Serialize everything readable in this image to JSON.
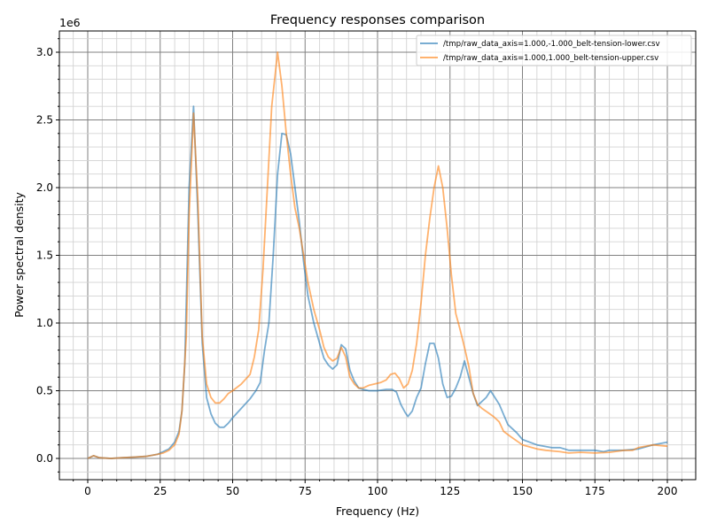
{
  "chart_data": {
    "type": "line",
    "title": "Frequency responses comparison",
    "xlabel": "Frequency (Hz)",
    "ylabel": "Power spectral density",
    "y_scale_label": "1e6",
    "xlim": [
      -10,
      210
    ],
    "ylim": [
      -0.15,
      3.15
    ],
    "x_ticks": [
      0,
      25,
      50,
      75,
      100,
      125,
      150,
      175,
      200
    ],
    "x_tick_labels": [
      "0",
      "25",
      "50",
      "75",
      "100",
      "125",
      "150",
      "175",
      "200"
    ],
    "y_ticks": [
      0,
      0.5,
      1,
      1.5,
      2,
      2.5,
      3
    ],
    "y_tick_labels": [
      "0.0",
      "0.5",
      "1.0",
      "1.5",
      "2.0",
      "2.5",
      "3.0"
    ],
    "grid": "major and minor",
    "legend_position": "top-right",
    "series": [
      {
        "name": "/tmp/raw_data_axis=1.000,-1.000_belt-tension-lower.csv",
        "color": "#1f77b4",
        "points": [
          [
            0,
            0
          ],
          [
            2,
            0.02
          ],
          [
            4,
            0.005
          ],
          [
            8,
            0
          ],
          [
            12,
            0.005
          ],
          [
            16,
            0.01
          ],
          [
            20,
            0.015
          ],
          [
            24,
            0.03
          ],
          [
            26,
            0.05
          ],
          [
            28,
            0.07
          ],
          [
            30,
            0.12
          ],
          [
            31.5,
            0.2
          ],
          [
            32.5,
            0.35
          ],
          [
            33.5,
            0.7
          ],
          [
            35,
            2.0
          ],
          [
            36.5,
            2.6
          ],
          [
            38,
            1.8
          ],
          [
            39.5,
            0.85
          ],
          [
            41,
            0.45
          ],
          [
            42.5,
            0.33
          ],
          [
            44,
            0.26
          ],
          [
            45.5,
            0.23
          ],
          [
            47,
            0.23
          ],
          [
            48.5,
            0.26
          ],
          [
            50,
            0.3
          ],
          [
            53,
            0.37
          ],
          [
            56,
            0.44
          ],
          [
            58,
            0.5
          ],
          [
            59.5,
            0.56
          ],
          [
            61,
            0.8
          ],
          [
            62.5,
            1.0
          ],
          [
            64,
            1.5
          ],
          [
            65.5,
            2.1
          ],
          [
            67,
            2.4
          ],
          [
            68.5,
            2.39
          ],
          [
            70,
            2.25
          ],
          [
            71.5,
            2.0
          ],
          [
            73,
            1.75
          ],
          [
            74.5,
            1.45
          ],
          [
            76,
            1.2
          ],
          [
            78,
            1.0
          ],
          [
            80,
            0.85
          ],
          [
            81.5,
            0.74
          ],
          [
            83,
            0.69
          ],
          [
            84.5,
            0.66
          ],
          [
            86,
            0.69
          ],
          [
            87.5,
            0.84
          ],
          [
            89,
            0.81
          ],
          [
            90.5,
            0.65
          ],
          [
            92,
            0.57
          ],
          [
            93.5,
            0.52
          ],
          [
            95,
            0.51
          ],
          [
            97,
            0.5
          ],
          [
            100,
            0.5
          ],
          [
            103,
            0.51
          ],
          [
            105,
            0.51
          ],
          [
            106.5,
            0.49
          ],
          [
            108,
            0.4
          ],
          [
            109.5,
            0.34
          ],
          [
            110.5,
            0.31
          ],
          [
            112,
            0.35
          ],
          [
            113.5,
            0.45
          ],
          [
            115,
            0.52
          ],
          [
            116.5,
            0.7
          ],
          [
            118,
            0.85
          ],
          [
            119.5,
            0.85
          ],
          [
            121,
            0.74
          ],
          [
            122.5,
            0.55
          ],
          [
            124,
            0.45
          ],
          [
            125.5,
            0.46
          ],
          [
            127,
            0.52
          ],
          [
            128.5,
            0.6
          ],
          [
            130,
            0.72
          ],
          [
            131.5,
            0.6
          ],
          [
            133,
            0.48
          ],
          [
            134.5,
            0.39
          ],
          [
            136,
            0.42
          ],
          [
            137.5,
            0.45
          ],
          [
            139,
            0.5
          ],
          [
            140.5,
            0.45
          ],
          [
            142,
            0.4
          ],
          [
            145,
            0.25
          ],
          [
            148,
            0.19
          ],
          [
            150,
            0.14
          ],
          [
            155,
            0.1
          ],
          [
            160,
            0.08
          ],
          [
            163,
            0.08
          ],
          [
            166,
            0.06
          ],
          [
            170,
            0.06
          ],
          [
            175,
            0.06
          ],
          [
            178,
            0.05
          ],
          [
            180,
            0.06
          ],
          [
            185,
            0.06
          ],
          [
            190,
            0.07
          ],
          [
            195,
            0.1
          ],
          [
            200,
            0.12
          ]
        ]
      },
      {
        "name": "/tmp/raw_data_axis=1.000,1.000_belt-tension-upper.csv",
        "color": "#ff7f0e",
        "points": [
          [
            0,
            0
          ],
          [
            2,
            0.02
          ],
          [
            4,
            0.005
          ],
          [
            8,
            0
          ],
          [
            12,
            0.005
          ],
          [
            16,
            0.01
          ],
          [
            20,
            0.015
          ],
          [
            24,
            0.03
          ],
          [
            26,
            0.04
          ],
          [
            28,
            0.06
          ],
          [
            30,
            0.1
          ],
          [
            31.5,
            0.18
          ],
          [
            32.5,
            0.35
          ],
          [
            34,
            0.9
          ],
          [
            35,
            1.8
          ],
          [
            36.5,
            2.55
          ],
          [
            38,
            1.9
          ],
          [
            39.5,
            0.9
          ],
          [
            41,
            0.55
          ],
          [
            42.5,
            0.45
          ],
          [
            44,
            0.41
          ],
          [
            45.5,
            0.41
          ],
          [
            47,
            0.44
          ],
          [
            48.5,
            0.48
          ],
          [
            50,
            0.5
          ],
          [
            53,
            0.55
          ],
          [
            56,
            0.62
          ],
          [
            57.5,
            0.75
          ],
          [
            59,
            0.95
          ],
          [
            60.5,
            1.4
          ],
          [
            62,
            2.0
          ],
          [
            63.5,
            2.6
          ],
          [
            65.5,
            3.0
          ],
          [
            67,
            2.75
          ],
          [
            68.5,
            2.4
          ],
          [
            70,
            2.1
          ],
          [
            71.5,
            1.85
          ],
          [
            73,
            1.7
          ],
          [
            74.5,
            1.5
          ],
          [
            76,
            1.3
          ],
          [
            78,
            1.1
          ],
          [
            80,
            0.95
          ],
          [
            81.5,
            0.82
          ],
          [
            83,
            0.75
          ],
          [
            84.5,
            0.72
          ],
          [
            86,
            0.74
          ],
          [
            87.5,
            0.82
          ],
          [
            89,
            0.75
          ],
          [
            90.5,
            0.6
          ],
          [
            92,
            0.55
          ],
          [
            93.5,
            0.52
          ],
          [
            95,
            0.52
          ],
          [
            97,
            0.54
          ],
          [
            99,
            0.55
          ],
          [
            101,
            0.56
          ],
          [
            103,
            0.58
          ],
          [
            104.5,
            0.62
          ],
          [
            106,
            0.63
          ],
          [
            107.5,
            0.59
          ],
          [
            109,
            0.52
          ],
          [
            110.5,
            0.55
          ],
          [
            112,
            0.65
          ],
          [
            113.5,
            0.85
          ],
          [
            115,
            1.15
          ],
          [
            116.5,
            1.5
          ],
          [
            118,
            1.77
          ],
          [
            119.5,
            2.0
          ],
          [
            121,
            2.16
          ],
          [
            122.5,
            2.0
          ],
          [
            124,
            1.7
          ],
          [
            125.5,
            1.35
          ],
          [
            127,
            1.07
          ],
          [
            128.5,
            0.95
          ],
          [
            130,
            0.82
          ],
          [
            131.5,
            0.68
          ],
          [
            133,
            0.48
          ],
          [
            134.5,
            0.4
          ],
          [
            136,
            0.37
          ],
          [
            138,
            0.34
          ],
          [
            140,
            0.31
          ],
          [
            142,
            0.27
          ],
          [
            143.5,
            0.2
          ],
          [
            146,
            0.16
          ],
          [
            150,
            0.1
          ],
          [
            155,
            0.07
          ],
          [
            158,
            0.06
          ],
          [
            163,
            0.05
          ],
          [
            166,
            0.04
          ],
          [
            170,
            0.045
          ],
          [
            175,
            0.04
          ],
          [
            180,
            0.045
          ],
          [
            185,
            0.06
          ],
          [
            188,
            0.06
          ],
          [
            190,
            0.08
          ],
          [
            195,
            0.1
          ],
          [
            200,
            0.09
          ]
        ]
      }
    ]
  }
}
